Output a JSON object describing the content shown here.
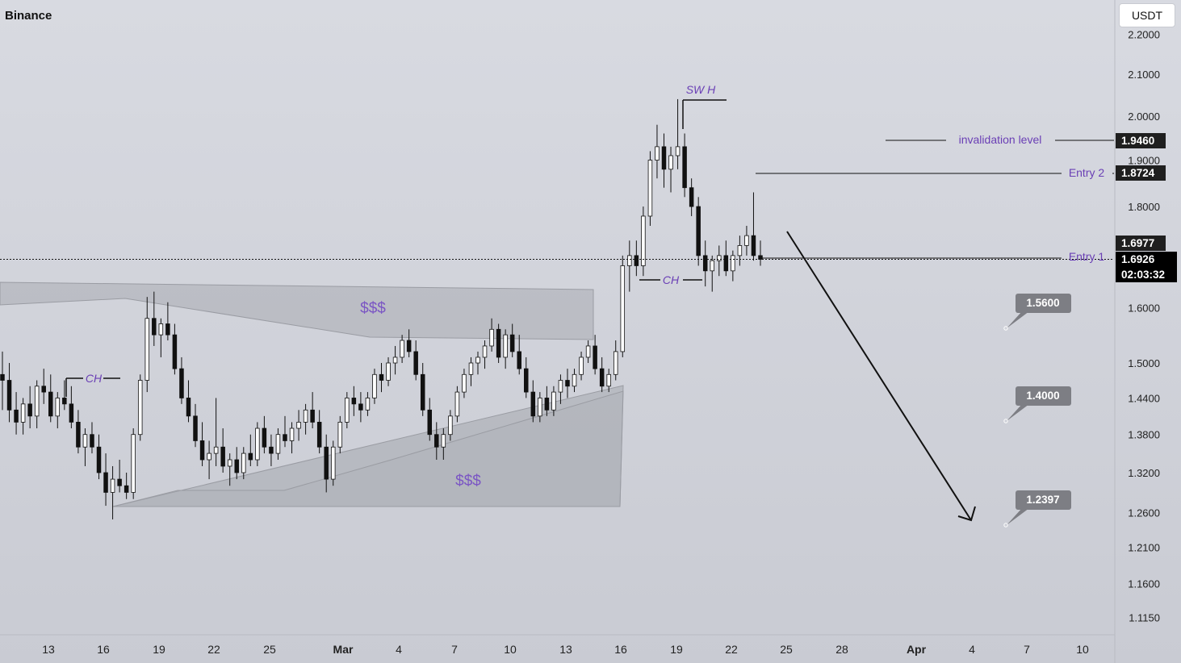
{
  "header": {
    "exchange": "Binance",
    "currency": "USDT"
  },
  "colors": {
    "background": "#cfd1d8",
    "candle_body": "#ffffff",
    "candle_outline": "#111111",
    "zone_fill": "#a9abb2",
    "annotation_purple": "#6a3fb5",
    "axis_text": "#222222",
    "label_dark": "#1f1f1f",
    "target_box": "#7d7e84"
  },
  "chart_data": {
    "type": "candlestick",
    "price_scale": "log",
    "y_ticks": [
      "2.2000",
      "2.1000",
      "2.0000",
      "1.9000",
      "1.8000",
      "1.6000",
      "1.5000",
      "1.4400",
      "1.3800",
      "1.3200",
      "1.2600",
      "1.2100",
      "1.1600",
      "1.1150"
    ],
    "x_ticks": [
      "13",
      "16",
      "19",
      "22",
      "25",
      "Mar",
      "4",
      "7",
      "10",
      "13",
      "16",
      "19",
      "22",
      "25",
      "28",
      "Apr",
      "4",
      "7",
      "10"
    ],
    "price_labels": [
      {
        "text": "1.9460",
        "style": "dark"
      },
      {
        "text": "1.8724",
        "style": "dark"
      },
      {
        "text": "1.6977",
        "style": "dark"
      },
      {
        "text": "1.6926",
        "style": "black"
      },
      {
        "text": "02:03:32",
        "style": "black"
      }
    ],
    "current_price": 1.6926,
    "countdown": "02:03:32",
    "annotations": {
      "invalidation": "invalidation level",
      "entry2": "Entry 2",
      "entry1": "Entry 1",
      "swh": "SW H",
      "ch_left": "CH",
      "ch_right": "CH",
      "liquidity_top": "$$$",
      "liquidity_bottom": "$$$"
    },
    "targets": [
      "1.5600",
      "1.4000",
      "1.2397"
    ],
    "candles": [
      [
        1.48,
        1.52,
        1.42,
        1.47
      ],
      [
        1.47,
        1.5,
        1.4,
        1.42
      ],
      [
        1.42,
        1.45,
        1.38,
        1.4
      ],
      [
        1.4,
        1.44,
        1.38,
        1.43
      ],
      [
        1.43,
        1.46,
        1.39,
        1.41
      ],
      [
        1.41,
        1.47,
        1.39,
        1.46
      ],
      [
        1.46,
        1.49,
        1.43,
        1.45
      ],
      [
        1.45,
        1.48,
        1.4,
        1.41
      ],
      [
        1.41,
        1.45,
        1.39,
        1.44
      ],
      [
        1.44,
        1.47,
        1.42,
        1.43
      ],
      [
        1.43,
        1.46,
        1.39,
        1.4
      ],
      [
        1.4,
        1.42,
        1.35,
        1.36
      ],
      [
        1.36,
        1.39,
        1.33,
        1.38
      ],
      [
        1.38,
        1.4,
        1.35,
        1.36
      ],
      [
        1.36,
        1.38,
        1.31,
        1.32
      ],
      [
        1.32,
        1.35,
        1.27,
        1.29
      ],
      [
        1.29,
        1.33,
        1.25,
        1.31
      ],
      [
        1.31,
        1.34,
        1.29,
        1.3
      ],
      [
        1.3,
        1.32,
        1.28,
        1.29
      ],
      [
        1.29,
        1.39,
        1.28,
        1.38
      ],
      [
        1.38,
        1.48,
        1.37,
        1.47
      ],
      [
        1.47,
        1.62,
        1.45,
        1.58
      ],
      [
        1.58,
        1.63,
        1.53,
        1.55
      ],
      [
        1.55,
        1.58,
        1.51,
        1.57
      ],
      [
        1.57,
        1.61,
        1.54,
        1.55
      ],
      [
        1.55,
        1.57,
        1.48,
        1.49
      ],
      [
        1.49,
        1.51,
        1.43,
        1.44
      ],
      [
        1.44,
        1.47,
        1.4,
        1.41
      ],
      [
        1.41,
        1.43,
        1.36,
        1.37
      ],
      [
        1.37,
        1.4,
        1.33,
        1.34
      ],
      [
        1.34,
        1.37,
        1.31,
        1.35
      ],
      [
        1.35,
        1.44,
        1.33,
        1.36
      ],
      [
        1.36,
        1.39,
        1.32,
        1.33
      ],
      [
        1.33,
        1.35,
        1.3,
        1.34
      ],
      [
        1.34,
        1.36,
        1.31,
        1.32
      ],
      [
        1.32,
        1.36,
        1.31,
        1.35
      ],
      [
        1.35,
        1.38,
        1.33,
        1.34
      ],
      [
        1.34,
        1.4,
        1.33,
        1.39
      ],
      [
        1.39,
        1.41,
        1.35,
        1.36
      ],
      [
        1.36,
        1.38,
        1.33,
        1.35
      ],
      [
        1.35,
        1.39,
        1.34,
        1.38
      ],
      [
        1.38,
        1.41,
        1.36,
        1.37
      ],
      [
        1.37,
        1.4,
        1.35,
        1.39
      ],
      [
        1.39,
        1.42,
        1.37,
        1.4
      ],
      [
        1.4,
        1.43,
        1.38,
        1.42
      ],
      [
        1.42,
        1.45,
        1.39,
        1.4
      ],
      [
        1.4,
        1.42,
        1.35,
        1.36
      ],
      [
        1.36,
        1.38,
        1.29,
        1.31
      ],
      [
        1.31,
        1.37,
        1.3,
        1.36
      ],
      [
        1.36,
        1.41,
        1.35,
        1.4
      ],
      [
        1.4,
        1.45,
        1.39,
        1.44
      ],
      [
        1.44,
        1.46,
        1.41,
        1.43
      ],
      [
        1.43,
        1.45,
        1.4,
        1.42
      ],
      [
        1.42,
        1.45,
        1.41,
        1.44
      ],
      [
        1.44,
        1.49,
        1.43,
        1.48
      ],
      [
        1.48,
        1.5,
        1.45,
        1.47
      ],
      [
        1.47,
        1.51,
        1.46,
        1.5
      ],
      [
        1.5,
        1.53,
        1.48,
        1.51
      ],
      [
        1.51,
        1.55,
        1.5,
        1.54
      ],
      [
        1.54,
        1.56,
        1.51,
        1.52
      ],
      [
        1.52,
        1.54,
        1.47,
        1.48
      ],
      [
        1.48,
        1.5,
        1.41,
        1.42
      ],
      [
        1.42,
        1.44,
        1.37,
        1.38
      ],
      [
        1.38,
        1.4,
        1.34,
        1.36
      ],
      [
        1.36,
        1.39,
        1.34,
        1.38
      ],
      [
        1.38,
        1.42,
        1.37,
        1.41
      ],
      [
        1.41,
        1.46,
        1.4,
        1.45
      ],
      [
        1.45,
        1.49,
        1.44,
        1.48
      ],
      [
        1.48,
        1.51,
        1.46,
        1.5
      ],
      [
        1.5,
        1.52,
        1.48,
        1.51
      ],
      [
        1.51,
        1.54,
        1.49,
        1.53
      ],
      [
        1.53,
        1.58,
        1.52,
        1.56
      ],
      [
        1.56,
        1.57,
        1.5,
        1.51
      ],
      [
        1.51,
        1.56,
        1.49,
        1.55
      ],
      [
        1.55,
        1.57,
        1.51,
        1.52
      ],
      [
        1.52,
        1.55,
        1.48,
        1.49
      ],
      [
        1.49,
        1.51,
        1.44,
        1.45
      ],
      [
        1.45,
        1.47,
        1.4,
        1.41
      ],
      [
        1.41,
        1.45,
        1.4,
        1.44
      ],
      [
        1.44,
        1.46,
        1.41,
        1.42
      ],
      [
        1.42,
        1.46,
        1.41,
        1.45
      ],
      [
        1.45,
        1.48,
        1.43,
        1.47
      ],
      [
        1.47,
        1.49,
        1.44,
        1.46
      ],
      [
        1.46,
        1.49,
        1.45,
        1.48
      ],
      [
        1.48,
        1.52,
        1.47,
        1.51
      ],
      [
        1.51,
        1.54,
        1.5,
        1.53
      ],
      [
        1.53,
        1.55,
        1.48,
        1.49
      ],
      [
        1.49,
        1.51,
        1.45,
        1.46
      ],
      [
        1.46,
        1.49,
        1.45,
        1.48
      ],
      [
        1.48,
        1.54,
        1.47,
        1.52
      ],
      [
        1.52,
        1.7,
        1.51,
        1.68
      ],
      [
        1.68,
        1.73,
        1.63,
        1.7
      ],
      [
        1.7,
        1.73,
        1.66,
        1.68
      ],
      [
        1.68,
        1.8,
        1.66,
        1.78
      ],
      [
        1.78,
        1.92,
        1.76,
        1.9
      ],
      [
        1.9,
        1.98,
        1.86,
        1.93
      ],
      [
        1.93,
        1.96,
        1.84,
        1.88
      ],
      [
        1.88,
        1.93,
        1.83,
        1.91
      ],
      [
        1.91,
        2.04,
        1.88,
        1.93
      ],
      [
        1.93,
        1.96,
        1.82,
        1.84
      ],
      [
        1.84,
        1.86,
        1.78,
        1.8
      ],
      [
        1.8,
        1.82,
        1.68,
        1.7
      ],
      [
        1.7,
        1.73,
        1.64,
        1.67
      ],
      [
        1.67,
        1.7,
        1.63,
        1.69
      ],
      [
        1.69,
        1.72,
        1.66,
        1.7
      ],
      [
        1.7,
        1.73,
        1.66,
        1.67
      ],
      [
        1.67,
        1.71,
        1.65,
        1.7
      ],
      [
        1.7,
        1.74,
        1.68,
        1.72
      ],
      [
        1.72,
        1.76,
        1.7,
        1.74
      ],
      [
        1.74,
        1.83,
        1.69,
        1.7
      ],
      [
        1.7,
        1.73,
        1.68,
        1.6926
      ]
    ]
  }
}
